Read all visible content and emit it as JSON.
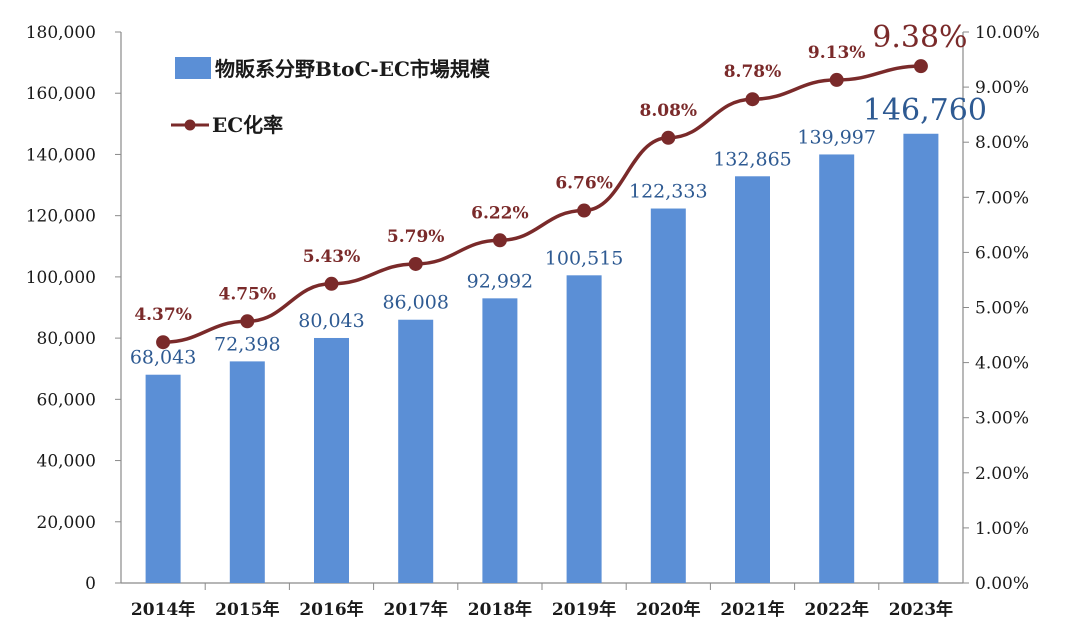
{
  "chart_data": {
    "type": "bar",
    "categories": [
      "2014年",
      "2015年",
      "2016年",
      "2017年",
      "2018年",
      "2019年",
      "2020年",
      "2021年",
      "2022年",
      "2023年"
    ],
    "series": [
      {
        "name": "物販系分野BtoC-EC市場規模",
        "type": "bar",
        "axis": "left",
        "color": "#5b8fd6",
        "values": [
          68043,
          72398,
          80043,
          86008,
          92992,
          100515,
          122333,
          132865,
          139997,
          146760
        ],
        "labels": [
          "68,043",
          "72,398",
          "80,043",
          "86,008",
          "92,992",
          "100,515",
          "122,333",
          "132,865",
          "139,997",
          "146,760"
        ]
      },
      {
        "name": "EC化率",
        "type": "line",
        "axis": "right",
        "color": "#7a2a2a",
        "values": [
          4.37,
          4.75,
          5.43,
          5.79,
          6.22,
          6.76,
          8.08,
          8.78,
          9.13,
          9.38
        ],
        "labels": [
          "4.37%",
          "4.75%",
          "5.43%",
          "5.79%",
          "6.22%",
          "6.76%",
          "8.08%",
          "8.78%",
          "9.13%",
          "9.38%"
        ]
      }
    ],
    "y_left": {
      "ylim": [
        0,
        180000
      ],
      "ticks": [
        "0",
        "20,000",
        "40,000",
        "60,000",
        "80,000",
        "100,000",
        "120,000",
        "140,000",
        "160,000",
        "180,000"
      ]
    },
    "y_right": {
      "ylim": [
        0,
        10
      ],
      "ticks": [
        "0.00%",
        "1.00%",
        "2.00%",
        "3.00%",
        "4.00%",
        "5.00%",
        "6.00%",
        "7.00%",
        "8.00%",
        "9.00%",
        "10.00%"
      ]
    },
    "grid": false,
    "legend": "top-left"
  }
}
